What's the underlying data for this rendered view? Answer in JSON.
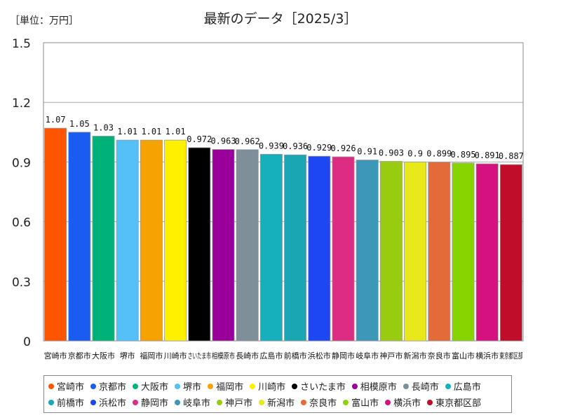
{
  "unit_label": "［単位：万円］",
  "chart_data": {
    "type": "bar",
    "title": "最新のデータ［2025/3］",
    "ylim": [
      0,
      1.5
    ],
    "yticks": [
      "0",
      "0.3",
      "0.6",
      "0.9",
      "1.2",
      "1.5"
    ],
    "categories": [
      "宮崎市",
      "京都市",
      "大阪市",
      "堺市",
      "福岡市",
      "川崎市",
      "さいたま市",
      "相模原市",
      "長崎市",
      "広島市",
      "前橋市",
      "浜松市",
      "静岡市",
      "岐阜市",
      "神戸市",
      "新潟市",
      "奈良市",
      "富山市",
      "横浜市",
      "東京都区部"
    ],
    "values": [
      1.07,
      1.05,
      1.03,
      1.01,
      1.01,
      1.01,
      0.972,
      0.963,
      0.962,
      0.939,
      0.936,
      0.929,
      0.926,
      0.91,
      0.903,
      0.9,
      0.899,
      0.895,
      0.891,
      0.887
    ],
    "value_labels": [
      "1.07",
      "1.05",
      "1.03",
      "1.01",
      "1.01",
      "1.01",
      "0.972",
      "0.963",
      "0.962",
      "0.939",
      "0.936",
      "0.929",
      "0.926",
      "0.91",
      "0.903",
      "0.9",
      "0.899",
      "0.895",
      "0.891",
      "0.887"
    ],
    "colors": [
      "#ff5500",
      "#1a5cf2",
      "#00b27a",
      "#55bff7",
      "#f6a200",
      "#fff000",
      "#000000",
      "#990099",
      "#7f8f99",
      "#16b0bd",
      "#1aa6b3",
      "#1c47f2",
      "#dd2d82",
      "#3d97b8",
      "#99cc11",
      "#e8e81a",
      "#e36b3a",
      "#88d400",
      "#d4117f",
      "#c00d2a"
    ],
    "legend": [
      "宮崎市",
      "京都市",
      "大阪市",
      "堺市",
      "福岡市",
      "川崎市",
      "さいたま市",
      "相模原市",
      "長崎市",
      "広島市",
      "前橋市",
      "浜松市",
      "静岡市",
      "岐阜市",
      "神戸市",
      "新潟市",
      "奈良市",
      "富山市",
      "横浜市",
      "東京都区部"
    ],
    "legend_position": "bottom"
  }
}
